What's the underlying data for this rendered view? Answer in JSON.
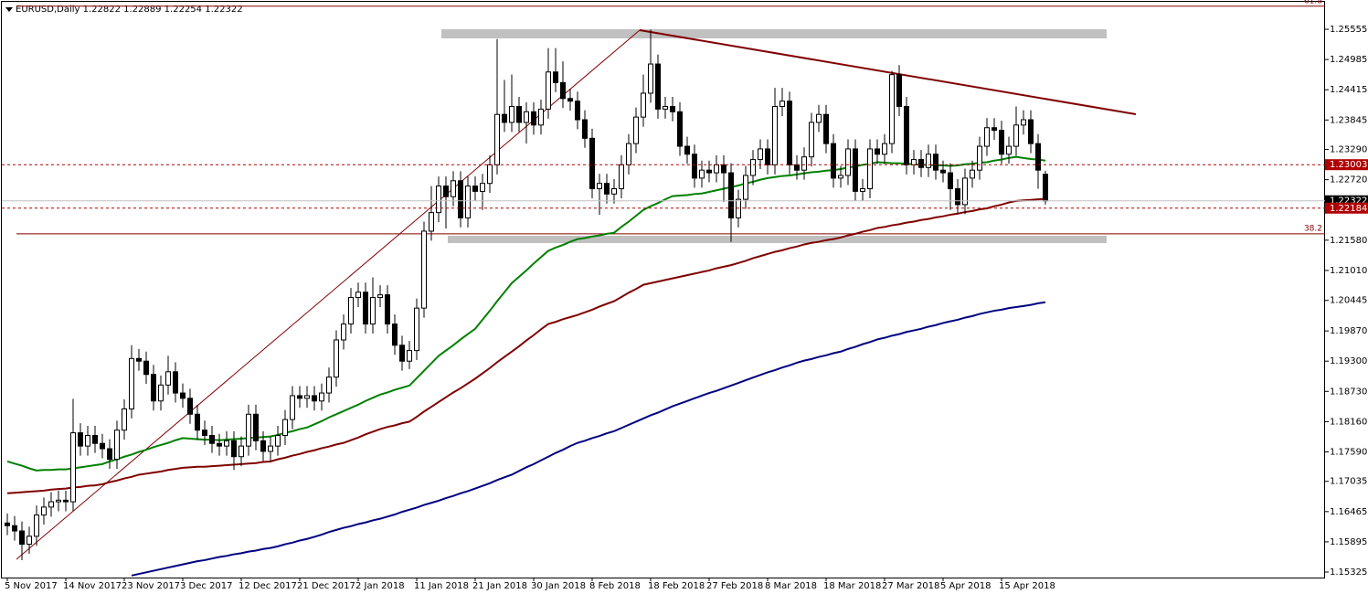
{
  "chart_data": {
    "type": "candlestick",
    "title": "EURUSD,Daily  1.22822 1.22889 1.22254 1.22322",
    "categories": [
      "5 Nov 2017",
      null,
      null,
      null,
      null,
      null,
      null,
      null,
      "14 Nov 2017",
      null,
      null,
      null,
      null,
      null,
      null,
      null,
      "23 Nov 2017",
      null,
      null,
      null,
      null,
      null,
      null,
      null,
      "3 Dec 2017",
      null,
      null,
      null,
      null,
      null,
      null,
      null,
      "12 Dec 2017",
      null,
      null,
      null,
      null,
      null,
      null,
      null,
      "21 Dec 2017",
      null,
      null,
      null,
      null,
      null,
      null,
      null,
      "2 Jan 2018",
      null,
      null,
      null,
      null,
      null,
      null,
      null,
      "11 Jan 2018",
      null,
      null,
      null,
      null,
      null,
      null,
      null,
      "21 Jan 2018",
      null,
      null,
      null,
      null,
      null,
      null,
      null,
      "30 Jan 2018",
      null,
      null,
      null,
      null,
      null,
      null,
      null,
      "8 Feb 2018",
      null,
      null,
      null,
      null,
      null,
      null,
      null,
      "18 Feb 2018",
      null,
      null,
      null,
      null,
      null,
      null,
      null,
      "27 Feb 2018",
      null,
      null,
      null,
      null,
      null,
      null,
      null,
      "8 Mar 2018",
      null,
      null,
      null,
      null,
      null,
      null,
      null,
      "18 Mar 2018",
      null,
      null,
      null,
      null,
      null,
      null,
      null,
      "27 Mar 2018",
      null,
      null,
      null,
      null,
      null,
      null,
      null,
      "5 Apr 2018",
      null,
      null,
      null,
      null,
      null,
      null,
      null,
      "15 Apr 2018",
      null,
      null,
      null,
      null,
      null,
      null
    ],
    "open": [
      1.1625,
      1.162,
      1.161,
      1.1585,
      1.16,
      1.164,
      1.1655,
      1.1665,
      1.1668,
      1.1665,
      1.1795,
      1.177,
      1.179,
      1.1775,
      1.1765,
      1.1745,
      1.18,
      1.184,
      1.1935,
      1.193,
      1.1905,
      1.1855,
      1.1885,
      1.191,
      1.187,
      1.186,
      1.183,
      1.18,
      1.179,
      1.1775,
      1.177,
      1.178,
      1.175,
      1.177,
      1.183,
      1.178,
      1.176,
      1.177,
      1.179,
      1.182,
      1.1865,
      1.186,
      1.1865,
      1.1855,
      1.187,
      1.19,
      1.197,
      1.2,
      1.205,
      1.206,
      1.2,
      1.205,
      1.2055,
      1.2,
      1.196,
      1.193,
      1.195,
      1.203,
      1.2175,
      1.221,
      1.226,
      1.224,
      1.227,
      1.22,
      1.226,
      1.225,
      1.2265,
      1.23,
      1.2395,
      1.238,
      1.241,
      1.238,
      1.24,
      1.2375,
      1.2405,
      1.2475,
      1.2455,
      1.2425,
      1.242,
      1.2385,
      1.235,
      1.2255,
      1.2265,
      1.2245,
      1.2255,
      1.23,
      1.234,
      1.239,
      1.2435,
      1.249,
      1.2405,
      1.241,
      1.24,
      1.2335,
      1.232,
      1.2275,
      1.229,
      1.2285,
      1.23,
      1.2285,
      1.22,
      1.2235,
      1.228,
      1.231,
      1.233,
      1.23,
      1.241,
      1.242,
      1.23,
      1.229,
      1.2315,
      1.238,
      1.2395,
      1.234,
      1.2275,
      1.228,
      1.233,
      1.225,
      1.2255,
      1.233,
      1.232,
      1.234,
      1.247,
      1.241,
      1.23,
      1.231,
      1.2295,
      1.232,
      1.229,
      1.2285,
      1.2255,
      1.2225,
      1.2275,
      1.229,
      1.2335,
      1.237,
      1.2365,
      1.232,
      1.2335,
      1.2375,
      1.2385,
      1.234,
      1.22822
    ],
    "high": [
      1.1643,
      1.1638,
      1.1628,
      1.1618,
      1.1658,
      1.1673,
      1.1683,
      1.1686,
      1.1686,
      1.1859,
      1.1813,
      1.1808,
      1.1808,
      1.1793,
      1.1783,
      1.1818,
      1.1858,
      1.196,
      1.1953,
      1.1948,
      1.1923,
      1.1903,
      1.194,
      1.1928,
      1.1888,
      1.1878,
      1.1848,
      1.1818,
      1.1808,
      1.1793,
      1.1798,
      1.1798,
      1.1788,
      1.1848,
      1.1848,
      1.1798,
      1.1788,
      1.1808,
      1.1838,
      1.1883,
      1.1883,
      1.1883,
      1.1883,
      1.1888,
      1.1918,
      1.1988,
      1.2018,
      1.2068,
      1.2078,
      1.2078,
      1.2088,
      1.2073,
      1.2073,
      1.2018,
      1.1978,
      1.1968,
      1.2048,
      1.2193,
      1.226,
      1.2278,
      1.2278,
      1.2288,
      1.2288,
      1.2278,
      1.2278,
      1.2283,
      1.2318,
      1.2537,
      1.246,
      1.247,
      1.2428,
      1.2418,
      1.2418,
      1.2423,
      1.252,
      1.252,
      1.2495,
      1.2443,
      1.2438,
      1.2403,
      1.2368,
      1.2283,
      1.2283,
      1.2273,
      1.2318,
      1.2358,
      1.2408,
      1.247,
      1.2555,
      1.2508,
      1.2428,
      1.2428,
      1.2418,
      1.2353,
      1.2338,
      1.2308,
      1.2308,
      1.2318,
      1.2318,
      1.2303,
      1.2253,
      1.2298,
      1.2328,
      1.2348,
      1.2348,
      1.2445,
      1.2445,
      1.2438,
      1.2318,
      1.2333,
      1.2398,
      1.2413,
      1.2413,
      1.2358,
      1.2298,
      1.2348,
      1.2348,
      1.2273,
      1.2348,
      1.2348,
      1.2358,
      1.2477,
      1.2488,
      1.2428,
      1.2328,
      1.2328,
      1.2338,
      1.2338,
      1.2308,
      1.2303,
      1.2273,
      1.2293,
      1.2308,
      1.2353,
      1.2388,
      1.2388,
      1.2383,
      1.2353,
      1.241,
      1.2403,
      1.2403,
      1.2358,
      1.22889
    ],
    "low": [
      1.1602,
      1.1592,
      1.1555,
      1.1567,
      1.1582,
      1.1622,
      1.1637,
      1.1647,
      1.1647,
      1.1647,
      1.1752,
      1.1752,
      1.1757,
      1.1747,
      1.1727,
      1.1727,
      1.1782,
      1.1822,
      1.1912,
      1.1887,
      1.1837,
      1.1837,
      1.1867,
      1.1852,
      1.1842,
      1.1812,
      1.1782,
      1.1772,
      1.1757,
      1.1752,
      1.1752,
      1.1725,
      1.1732,
      1.1752,
      1.1762,
      1.1742,
      1.1742,
      1.1752,
      1.1772,
      1.1802,
      1.1842,
      1.1842,
      1.1837,
      1.1837,
      1.1852,
      1.1882,
      1.1952,
      1.1982,
      1.2032,
      1.1982,
      1.1982,
      1.2032,
      1.1982,
      1.1942,
      1.1912,
      1.1915,
      1.1932,
      1.2012,
      1.2157,
      1.2192,
      1.218,
      1.2222,
      1.2182,
      1.2182,
      1.2232,
      1.2215,
      1.2247,
      1.2282,
      1.2362,
      1.2362,
      1.2362,
      1.234,
      1.2357,
      1.2357,
      1.2387,
      1.2437,
      1.2407,
      1.2402,
      1.2367,
      1.2332,
      1.2237,
      1.2206,
      1.2227,
      1.2227,
      1.2237,
      1.2282,
      1.2322,
      1.2372,
      1.2417,
      1.2387,
      1.2387,
      1.2382,
      1.2317,
      1.2302,
      1.2257,
      1.2257,
      1.2267,
      1.2267,
      1.223,
      1.2155,
      1.2182,
      1.2217,
      1.2262,
      1.2292,
      1.2282,
      1.2282,
      1.2392,
      1.2282,
      1.2272,
      1.2272,
      1.2297,
      1.2362,
      1.2322,
      1.2257,
      1.2257,
      1.2262,
      1.2232,
      1.2232,
      1.2237,
      1.2302,
      1.2302,
      1.2322,
      1.2392,
      1.2282,
      1.2282,
      1.2277,
      1.2277,
      1.2272,
      1.2267,
      1.2215,
      1.2207,
      1.2207,
      1.2257,
      1.2272,
      1.2317,
      1.2347,
      1.2302,
      1.2302,
      1.2317,
      1.2357,
      1.2322,
      1.2255,
      1.22254
    ],
    "close": [
      1.162,
      1.161,
      1.1585,
      1.16,
      1.164,
      1.1655,
      1.1665,
      1.1668,
      1.1665,
      1.1795,
      1.177,
      1.179,
      1.1775,
      1.1765,
      1.1745,
      1.18,
      1.184,
      1.1935,
      1.193,
      1.1905,
      1.1855,
      1.1885,
      1.191,
      1.187,
      1.186,
      1.183,
      1.18,
      1.179,
      1.1775,
      1.177,
      1.178,
      1.175,
      1.177,
      1.183,
      1.178,
      1.176,
      1.177,
      1.179,
      1.182,
      1.1865,
      1.186,
      1.1865,
      1.1855,
      1.187,
      1.19,
      1.197,
      1.2,
      1.205,
      1.206,
      1.2,
      1.205,
      1.2055,
      1.2,
      1.196,
      1.193,
      1.195,
      1.203,
      1.2175,
      1.221,
      1.226,
      1.224,
      1.227,
      1.22,
      1.226,
      1.225,
      1.2265,
      1.23,
      1.2395,
      1.238,
      1.241,
      1.238,
      1.24,
      1.2375,
      1.2405,
      1.2475,
      1.2455,
      1.2425,
      1.242,
      1.2385,
      1.235,
      1.2255,
      1.2265,
      1.2245,
      1.2255,
      1.23,
      1.234,
      1.239,
      1.2435,
      1.249,
      1.2405,
      1.241,
      1.24,
      1.2335,
      1.232,
      1.2275,
      1.229,
      1.2285,
      1.23,
      1.2285,
      1.22,
      1.2235,
      1.228,
      1.231,
      1.233,
      1.23,
      1.241,
      1.242,
      1.23,
      1.229,
      1.2315,
      1.238,
      1.2395,
      1.234,
      1.2275,
      1.228,
      1.233,
      1.225,
      1.2255,
      1.233,
      1.232,
      1.234,
      1.247,
      1.241,
      1.23,
      1.231,
      1.2295,
      1.232,
      1.229,
      1.2285,
      1.2255,
      1.2225,
      1.2275,
      1.229,
      1.2335,
      1.237,
      1.2365,
      1.232,
      1.2335,
      1.2375,
      1.2385,
      1.234,
      1.229,
      1.22322
    ],
    "series": [
      {
        "color": "#008000",
        "values": [
          1.1741,
          1.1737,
          1.1733,
          1.1728,
          1.1724,
          1.1725,
          1.1725,
          1.1726,
          1.1726,
          1.1728,
          1.173,
          1.1732,
          1.1734,
          1.1736,
          1.1741,
          1.1745,
          1.175,
          1.1754,
          1.1759,
          1.1763,
          1.1768,
          1.1772,
          1.1776,
          1.1781,
          1.1785,
          1.1784,
          1.1783,
          1.1782,
          1.1782,
          1.1781,
          1.1782,
          1.1783,
          1.1784,
          1.1785,
          1.1786,
          1.1787,
          1.1788,
          1.1791,
          1.1795,
          1.1798,
          1.1802,
          1.1805,
          1.1811,
          1.1817,
          1.1824,
          1.183,
          1.1836,
          1.1842,
          1.1848,
          1.1855,
          1.1861,
          1.1867,
          1.1871,
          1.1876,
          1.188,
          1.1884,
          1.1898,
          1.1912,
          1.1926,
          1.194,
          1.195,
          1.196,
          1.1971,
          1.1981,
          1.1991,
          1.2008,
          1.2025,
          1.2043,
          1.206,
          1.2077,
          1.2089,
          1.2101,
          1.2114,
          1.2126,
          1.2138,
          1.2144,
          1.2149,
          1.2155,
          1.216,
          1.2162,
          1.2165,
          1.2167,
          1.217,
          1.2172,
          1.2183,
          1.2193,
          1.2204,
          1.2215,
          1.2222,
          1.2228,
          1.2235,
          1.2241,
          1.2242,
          1.2243,
          1.2245,
          1.2246,
          1.2249,
          1.2252,
          1.2255,
          1.2258,
          1.2261,
          1.2265,
          1.2268,
          1.2272,
          1.2275,
          1.2277,
          1.2279,
          1.228,
          1.2282,
          1.2284,
          1.2286,
          1.2287,
          1.2289,
          1.229,
          1.2292,
          1.2295,
          1.2297,
          1.23,
          1.2302,
          1.2305,
          1.2304,
          1.2303,
          1.2303,
          1.2302,
          1.2301,
          1.23,
          1.23,
          1.2299,
          1.2299,
          1.2298,
          1.2299,
          1.2301,
          1.2302,
          1.2304,
          1.2305,
          1.2308,
          1.231,
          1.2313,
          1.2315,
          1.2313,
          1.2311,
          1.231,
          1.2308
        ]
      },
      {
        "color": "#800000",
        "values": [
          1.1681,
          1.1682,
          1.1683,
          1.1684,
          1.1685,
          1.1686,
          1.1688,
          1.1689,
          1.169,
          1.1692,
          1.1693,
          1.1695,
          1.1696,
          1.1698,
          1.1702,
          1.1705,
          1.1709,
          1.1712,
          1.1716,
          1.1718,
          1.172,
          1.1722,
          1.1725,
          1.1727,
          1.1729,
          1.173,
          1.1731,
          1.1731,
          1.1732,
          1.1733,
          1.1734,
          1.1735,
          1.1736,
          1.1737,
          1.1738,
          1.174,
          1.1741,
          1.1745,
          1.1748,
          1.1752,
          1.1755,
          1.1759,
          1.1762,
          1.1766,
          1.1769,
          1.1773,
          1.1776,
          1.1781,
          1.1786,
          1.1792,
          1.1797,
          1.1802,
          1.1806,
          1.1809,
          1.1813,
          1.1816,
          1.1825,
          1.1835,
          1.1844,
          1.1853,
          1.1862,
          1.1871,
          1.1879,
          1.1888,
          1.1897,
          1.1907,
          1.1917,
          1.1928,
          1.1938,
          1.1948,
          1.1958,
          1.1969,
          1.1979,
          1.199,
          1.2,
          1.2004,
          1.2009,
          1.2013,
          1.2017,
          1.2022,
          1.2027,
          1.2033,
          1.2038,
          1.2043,
          1.2051,
          1.2059,
          1.2066,
          1.2074,
          1.2077,
          1.208,
          1.2083,
          1.2086,
          1.2089,
          1.2092,
          1.2095,
          1.2098,
          1.2101,
          1.2105,
          1.2108,
          1.2111,
          1.2115,
          1.2119,
          1.2124,
          1.2128,
          1.2132,
          1.2136,
          1.2139,
          1.2143,
          1.2146,
          1.215,
          1.2153,
          1.2155,
          1.2158,
          1.216,
          1.2163,
          1.2167,
          1.217,
          1.2174,
          1.2177,
          1.2181,
          1.2183,
          1.2186,
          1.2188,
          1.2191,
          1.2193,
          1.2196,
          1.2198,
          1.2201,
          1.2203,
          1.2206,
          1.2208,
          1.2211,
          1.2213,
          1.2216,
          1.2218,
          1.2222,
          1.2225,
          1.2229,
          1.2232,
          1.2233,
          1.2234,
          1.2235,
          1.2236
        ]
      },
      {
        "color": "#000080",
        "values": [
          null,
          null,
          null,
          null,
          null,
          null,
          null,
          null,
          null,
          null,
          null,
          null,
          null,
          null,
          null,
          null,
          null,
          1.1526,
          1.1529,
          1.1532,
          1.1535,
          1.1538,
          1.1541,
          1.1544,
          1.1547,
          1.155,
          1.1553,
          1.1555,
          1.1558,
          1.1561,
          1.1563,
          1.1566,
          1.1568,
          1.1571,
          1.1573,
          1.1576,
          1.1578,
          1.1581,
          1.1585,
          1.1588,
          1.1592,
          1.1595,
          1.1599,
          1.1603,
          1.1608,
          1.1612,
          1.1616,
          1.1619,
          1.1623,
          1.1626,
          1.163,
          1.1633,
          1.1637,
          1.1641,
          1.1646,
          1.165,
          1.1654,
          1.1659,
          1.1663,
          1.1667,
          1.1672,
          1.1676,
          1.1681,
          1.1685,
          1.169,
          1.1695,
          1.17,
          1.1706,
          1.1711,
          1.1716,
          1.1723,
          1.173,
          1.1736,
          1.1743,
          1.175,
          1.1757,
          1.1763,
          1.177,
          1.1776,
          1.178,
          1.1785,
          1.1789,
          1.1794,
          1.1798,
          1.1804,
          1.181,
          1.1816,
          1.1822,
          1.1828,
          1.1833,
          1.1839,
          1.1845,
          1.185,
          1.1855,
          1.186,
          1.1865,
          1.187,
          1.1874,
          1.1879,
          1.1884,
          1.1889,
          1.1894,
          1.1899,
          1.1904,
          1.1909,
          1.1913,
          1.1918,
          1.1922,
          1.1927,
          1.1931,
          1.1934,
          1.1938,
          1.1941,
          1.1945,
          1.1948,
          1.1953,
          1.1957,
          1.1962,
          1.1966,
          1.1971,
          1.1974,
          1.1978,
          1.1981,
          1.1985,
          1.1988,
          1.1991,
          1.1995,
          1.1998,
          1.2002,
          1.2005,
          1.2008,
          1.2012,
          1.2015,
          1.2019,
          1.2022,
          1.2025,
          1.2027,
          1.203,
          1.2032,
          1.2034,
          1.2036,
          1.2039,
          1.2041
        ]
      }
    ],
    "price_lines": [
      {
        "value": 1.23003,
        "color": "#b00000"
      },
      {
        "value": 1.22322,
        "color": "#000000"
      },
      {
        "value": 1.22184,
        "color": "#b00000"
      }
    ],
    "fib_levels": [
      {
        "label": "61.8",
        "value": 1.2599
      },
      {
        "label": "38.2",
        "value": 1.217
      }
    ],
    "ylim": [
      1.15222,
      1.26072
    ],
    "yticks": [
      1.25555,
      1.24985,
      1.24415,
      1.23845,
      {
        "value": 1.2329,
        "label": "1.23290"
      },
      {
        "value": 1.2272,
        "label": "1.22720"
      },
      {
        "value": 1.2158,
        "label": "1.21580"
      },
      {
        "value": 1.2101,
        "label": "1.21010"
      },
      1.20445,
      {
        "value": 1.1987,
        "label": "1.19870"
      },
      {
        "value": 1.193,
        "label": "1.19300"
      },
      {
        "value": 1.1873,
        "label": "1.18730"
      },
      {
        "value": 1.1816,
        "label": "1.18160"
      },
      {
        "value": 1.1759,
        "label": "1.17590"
      },
      1.17035,
      1.16465,
      1.15895,
      1.15325
    ],
    "grid": false
  }
}
